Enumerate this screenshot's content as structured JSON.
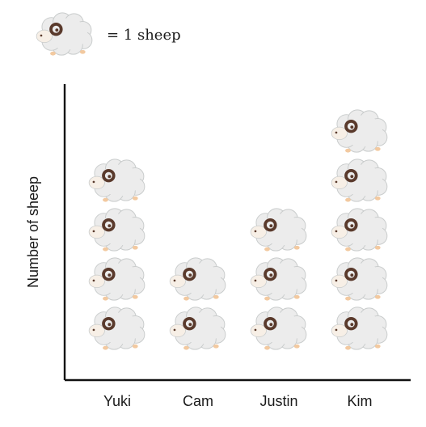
{
  "legend": {
    "text": "= 1 sheep",
    "icon": "sheep-icon"
  },
  "chart_data": {
    "type": "pictograph",
    "unit_icon": "sheep-icon",
    "unit_value": 1,
    "categories": [
      "Yuki",
      "Cam",
      "Justin",
      "Kim"
    ],
    "values": [
      4,
      2,
      3,
      5
    ],
    "ylabel": "Number of sheep",
    "xlabel": "",
    "colors": {
      "wool": "#ececec",
      "wool_stroke": "#c9cccc",
      "face": "#f7efe6",
      "horn": "#5a3a2c",
      "feet": "#f2c9a0",
      "axis": "#111111"
    }
  }
}
